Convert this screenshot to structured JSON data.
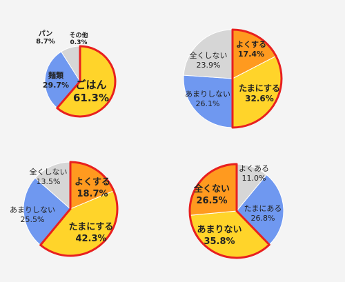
{
  "colors": {
    "background": "#f4f4f4",
    "outline_red": "#e8201f",
    "yellow": "#ffd42a",
    "orange": "#ff9a1f",
    "blue": "#6f98f0",
    "gray": "#d6d6d6"
  },
  "chart_data": [
    {
      "type": "pie",
      "slices": [
        {
          "label": "ごはん",
          "value": 61.3,
          "value_text": "61.3%",
          "color": "yellow",
          "highlight": true
        },
        {
          "label": "麺類",
          "value": 29.7,
          "value_text": "29.7%",
          "color": "blue",
          "highlight": false
        },
        {
          "label": "パン",
          "value": 8.7,
          "value_text": "8.7%",
          "color": "gray",
          "highlight": false
        },
        {
          "label": "その他",
          "value": 0.3,
          "value_text": "0.3%",
          "color": "gray",
          "highlight": false
        }
      ]
    },
    {
      "type": "pie",
      "slices": [
        {
          "label": "よくする",
          "value": 17.4,
          "value_text": "17.4%",
          "color": "orange",
          "highlight": true
        },
        {
          "label": "たまにする",
          "value": 32.6,
          "value_text": "32.6%",
          "color": "yellow",
          "highlight": true
        },
        {
          "label": "あまりしない",
          "value": 26.1,
          "value_text": "26.1%",
          "color": "blue",
          "highlight": false
        },
        {
          "label": "全くしない",
          "value": 23.9,
          "value_text": "23.9%",
          "color": "gray",
          "highlight": false
        }
      ]
    },
    {
      "type": "pie",
      "slices": [
        {
          "label": "よくする",
          "value": 18.7,
          "value_text": "18.7%",
          "color": "orange",
          "highlight": true
        },
        {
          "label": "たまにする",
          "value": 42.3,
          "value_text": "42.3%",
          "color": "yellow",
          "highlight": true
        },
        {
          "label": "あまりしない",
          "value": 25.5,
          "value_text": "25.5%",
          "color": "blue",
          "highlight": false
        },
        {
          "label": "全くしない",
          "value": 13.5,
          "value_text": "13.5%",
          "color": "gray",
          "highlight": false
        }
      ]
    },
    {
      "type": "pie",
      "slices": [
        {
          "label": "よくある",
          "value": 11.0,
          "value_text": "11.0%",
          "color": "gray",
          "highlight": false
        },
        {
          "label": "たまにある",
          "value": 26.8,
          "value_text": "26.8%",
          "color": "blue",
          "highlight": false
        },
        {
          "label": "あまりない",
          "value": 35.8,
          "value_text": "35.8%",
          "color": "yellow",
          "highlight": true
        },
        {
          "label": "全くない",
          "value": 26.5,
          "value_text": "26.5%",
          "color": "orange",
          "highlight": true
        }
      ]
    }
  ]
}
